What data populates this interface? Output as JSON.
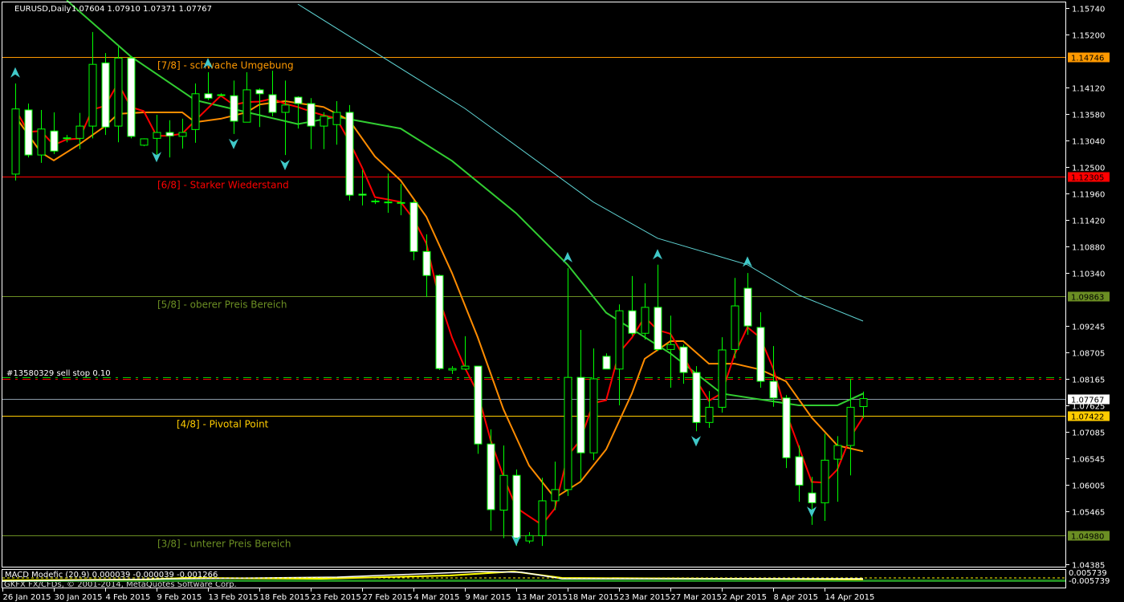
{
  "header": {
    "symbol": "EURUSD,Daily",
    "ohlc": "1.07604 1.07910 1.07371 1.07767"
  },
  "order_line": {
    "label": "#13580329 sell stop 0.10",
    "price": 1.08165
  },
  "bid_line": {
    "price": 1.07767,
    "label": "1.07767",
    "color": "#ffffff"
  },
  "levels": [
    {
      "label": "[7/8] - schwache Umgebung",
      "price": 1.14746,
      "tag": "1.14746",
      "color": "#ff9900"
    },
    {
      "label": "[6/8] - Starker Wiederstand",
      "price": 1.12305,
      "tag": "1.12305",
      "color": "#ff0000"
    },
    {
      "label": "[5/8] - oberer Preis Bereich",
      "price": 1.09863,
      "tag": "1.09863",
      "color": "#6b8e23"
    },
    {
      "label": "[4/8] - Pivotal Point",
      "price": 1.07422,
      "tag": "1.07422",
      "color": "#ffcc00"
    },
    {
      "label": "[3/8] - unterer Preis Bereich",
      "price": 1.0498,
      "tag": "1.04980",
      "color": "#6b8e23"
    }
  ],
  "price_axis": [
    "1.15740",
    "1.15200",
    "1.14120",
    "1.13580",
    "1.13040",
    "1.12500",
    "1.11960",
    "1.11420",
    "1.10880",
    "1.10340",
    "1.09245",
    "1.08705",
    "1.08165",
    "1.07625",
    "1.07085",
    "1.06545",
    "1.06005",
    "1.05465",
    "1.04385"
  ],
  "time_axis": [
    "26 Jan 2015",
    "30 Jan 2015",
    "4 Feb 2015",
    "9 Feb 2015",
    "13 Feb 2015",
    "18 Feb 2015",
    "23 Feb 2015",
    "27 Feb 2015",
    "4 Mar 2015",
    "9 Mar 2015",
    "13 Mar 2015",
    "18 Mar 2015",
    "23 Mar 2015",
    "27 Mar 2015",
    "2 Apr 2015",
    "8 Apr 2015",
    "14 Apr 2015"
  ],
  "indicator": {
    "label": "MACD Modefic (20,9) 0.000039 -0.000039 -0.001266",
    "axis_max": "0.005739",
    "axis_min": "-0.005739"
  },
  "watermark": "GKFX FX/CFDs, © 2001-2014, MetaQuotes Software Corp.",
  "colors": {
    "bull_outline": "#00ff00",
    "bear_body": "#ffffff",
    "ma_fast": "#ff0000",
    "ma_mid": "#ff8c00",
    "ma_slow": "#32cd32",
    "ma_long": "#5fd3d3",
    "fractal": "#40c8c8"
  },
  "chart_data": {
    "type": "candlestick",
    "title": "EURUSD,Daily",
    "candles_ohlc": [
      [
        1.1235,
        1.142,
        1.1222,
        1.1368
      ],
      [
        1.1366,
        1.1379,
        1.1269,
        1.1274
      ],
      [
        1.1274,
        1.1366,
        1.1258,
        1.1327
      ],
      [
        1.1323,
        1.1361,
        1.1276,
        1.1282
      ],
      [
        1.1309,
        1.1315,
        1.13,
        1.1308
      ],
      [
        1.1308,
        1.136,
        1.1286,
        1.1333
      ],
      [
        1.1333,
        1.1525,
        1.1308,
        1.1459
      ],
      [
        1.1462,
        1.1482,
        1.1315,
        1.1331
      ],
      [
        1.1333,
        1.1495,
        1.13,
        1.1472
      ],
      [
        1.1472,
        1.1476,
        1.1308,
        1.1312
      ],
      [
        1.1294,
        1.1308,
        1.1292,
        1.1307
      ],
      [
        1.1308,
        1.1356,
        1.1266,
        1.132
      ],
      [
        1.132,
        1.1345,
        1.1269,
        1.1313
      ],
      [
        1.1312,
        1.1348,
        1.1287,
        1.132
      ],
      [
        1.1326,
        1.142,
        1.1299,
        1.1399
      ],
      [
        1.1399,
        1.1443,
        1.1386,
        1.139
      ],
      [
        1.1397,
        1.14,
        1.1394,
        1.1396
      ],
      [
        1.1395,
        1.1426,
        1.1317,
        1.1343
      ],
      [
        1.1341,
        1.1443,
        1.1341,
        1.1407
      ],
      [
        1.1407,
        1.141,
        1.1331,
        1.1399
      ],
      [
        1.1397,
        1.1446,
        1.1353,
        1.1361
      ],
      [
        1.1361,
        1.1426,
        1.1274,
        1.1376
      ],
      [
        1.1392,
        1.1394,
        1.1328,
        1.1379
      ],
      [
        1.1379,
        1.139,
        1.1286,
        1.1333
      ],
      [
        1.1333,
        1.1361,
        1.1286,
        1.1353
      ],
      [
        1.1336,
        1.1384,
        1.1295,
        1.1361
      ],
      [
        1.1361,
        1.1376,
        1.1181,
        1.1192
      ],
      [
        1.1194,
        1.1243,
        1.1171,
        1.1192
      ],
      [
        1.1179,
        1.1184,
        1.1174,
        1.118
      ],
      [
        1.1177,
        1.1236,
        1.1156,
        1.1178
      ],
      [
        1.1177,
        1.1215,
        1.1151,
        1.1176
      ],
      [
        1.1177,
        1.1182,
        1.1059,
        1.1077
      ],
      [
        1.1077,
        1.1112,
        1.0984,
        1.1028
      ],
      [
        1.1028,
        1.103,
        1.0835,
        1.0838
      ],
      [
        1.0835,
        1.0843,
        1.0827,
        1.0838
      ],
      [
        1.0837,
        1.0904,
        1.0835,
        1.0843
      ],
      [
        1.0843,
        1.0843,
        1.0664,
        1.0684
      ],
      [
        1.0684,
        1.0714,
        1.0507,
        1.055
      ],
      [
        1.0549,
        1.0681,
        1.0492,
        1.062
      ],
      [
        1.062,
        1.0632,
        1.0476,
        1.0492
      ],
      [
        1.0486,
        1.0504,
        1.0481,
        1.0497
      ],
      [
        1.0497,
        1.0615,
        1.0476,
        1.0568
      ],
      [
        1.0568,
        1.0648,
        1.0549,
        1.0591
      ],
      [
        1.0591,
        1.1043,
        1.0578,
        1.082
      ],
      [
        1.082,
        1.0917,
        1.061,
        1.0666
      ],
      [
        1.0666,
        1.0879,
        1.0651,
        1.0817
      ],
      [
        1.0863,
        1.0869,
        1.0837,
        1.0837
      ],
      [
        1.0837,
        1.0969,
        1.0763,
        1.0956
      ],
      [
        1.0956,
        1.1027,
        1.0905,
        1.091
      ],
      [
        1.091,
        1.1012,
        1.0897,
        1.0963
      ],
      [
        1.0963,
        1.105,
        1.0874,
        1.0877
      ],
      [
        1.0877,
        1.0946,
        1.0799,
        1.0887
      ],
      [
        1.0882,
        1.0887,
        1.0807,
        1.083
      ],
      [
        1.083,
        1.0843,
        1.071,
        1.0728
      ],
      [
        1.0728,
        1.0792,
        1.0717,
        1.0759
      ],
      [
        1.0759,
        1.0902,
        1.0748,
        1.0876
      ],
      [
        1.0877,
        1.1023,
        1.0859,
        1.0966
      ],
      [
        1.1002,
        1.1033,
        1.0907,
        1.0925
      ],
      [
        1.0922,
        1.0953,
        1.0799,
        1.0812
      ],
      [
        1.0812,
        1.0884,
        1.076,
        1.0778
      ],
      [
        1.0778,
        1.0784,
        1.0635,
        1.0656
      ],
      [
        1.0658,
        1.0681,
        1.0566,
        1.06
      ],
      [
        1.0584,
        1.0617,
        1.0519,
        1.0564
      ],
      [
        1.0564,
        1.0705,
        1.0527,
        1.0651
      ],
      [
        1.0653,
        1.07,
        1.0566,
        1.0681
      ],
      [
        1.0681,
        1.0817,
        1.062,
        1.0759
      ],
      [
        1.07604,
        1.0791,
        1.07371,
        1.07767
      ]
    ],
    "ma_mid": [
      [
        0,
        1.1353
      ],
      [
        2,
        1.1279
      ],
      [
        3,
        1.1263
      ],
      [
        5,
        1.1296
      ],
      [
        7,
        1.1333
      ],
      [
        8,
        1.1358
      ],
      [
        10,
        1.1361
      ],
      [
        13,
        1.1361
      ],
      [
        14,
        1.1341
      ],
      [
        16,
        1.1348
      ],
      [
        18,
        1.1361
      ],
      [
        19,
        1.1377
      ],
      [
        21,
        1.1384
      ],
      [
        24,
        1.1372
      ],
      [
        26,
        1.1345
      ],
      [
        28,
        1.1271
      ],
      [
        30,
        1.1222
      ],
      [
        32,
        1.1148
      ],
      [
        34,
        1.1033
      ],
      [
        36,
        1.0902
      ],
      [
        38,
        1.0755
      ],
      [
        40,
        1.064
      ],
      [
        42,
        1.0574
      ],
      [
        44,
        1.0607
      ],
      [
        46,
        1.0673
      ],
      [
        48,
        1.0787
      ],
      [
        49,
        1.0858
      ],
      [
        51,
        1.0894
      ],
      [
        52,
        1.0894
      ],
      [
        54,
        1.0848
      ],
      [
        56,
        1.0848
      ],
      [
        58,
        1.0836
      ],
      [
        60,
        1.0812
      ],
      [
        62,
        1.0738
      ],
      [
        64,
        1.0681
      ],
      [
        66,
        1.0669
      ]
    ],
    "ma_slow": [
      [
        4,
        1.159
      ],
      [
        9,
        1.1475
      ],
      [
        14,
        1.1386
      ],
      [
        22,
        1.1337
      ],
      [
        25,
        1.1352
      ],
      [
        30,
        1.1328
      ],
      [
        34,
        1.1262
      ],
      [
        39,
        1.1155
      ],
      [
        43,
        1.105
      ],
      [
        46,
        1.0952
      ],
      [
        51,
        1.0869
      ],
      [
        55,
        1.0787
      ],
      [
        61,
        1.0763
      ],
      [
        64,
        1.0763
      ],
      [
        66,
        1.0787
      ]
    ],
    "ma_long": [
      [
        22,
        1.1582
      ],
      [
        35,
        1.1369
      ],
      [
        45,
        1.1178
      ],
      [
        50,
        1.1104
      ],
      [
        57,
        1.105
      ],
      [
        61,
        1.0988
      ],
      [
        66,
        1.0935
      ]
    ],
    "fractals_up": [
      [
        0,
        1.144
      ],
      [
        15,
        1.1459
      ],
      [
        43,
        1.1063
      ],
      [
        50,
        1.1069
      ],
      [
        57,
        1.1054
      ]
    ],
    "fractals_down": [
      [
        11,
        1.1272
      ],
      [
        17,
        1.1299
      ],
      [
        21,
        1.1256
      ],
      [
        39,
        1.0489
      ],
      [
        53,
        1.0692
      ],
      [
        62,
        1.0548
      ]
    ],
    "ylim": [
      1.04385,
      1.1574
    ]
  }
}
